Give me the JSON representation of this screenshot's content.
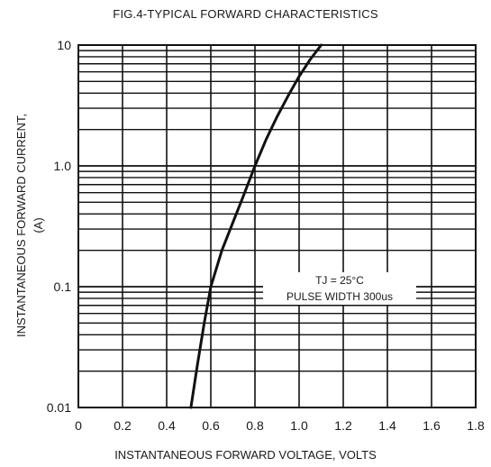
{
  "chart_data": {
    "type": "line",
    "title": "FIG.4-TYPICAL FORWARD CHARACTERISTICS",
    "xlabel": "INSTANTANEOUS FORWARD VOLTAGE, VOLTS",
    "ylabel_line1": "INSTANTANEOUS FORWARD CURRENT,",
    "ylabel_line2": "(A)",
    "xlim": [
      0,
      1.8
    ],
    "ylim": [
      0.01,
      10
    ],
    "yscale": "log",
    "grid": true,
    "x_ticks": [
      "0",
      "0.2",
      "0.4",
      "0.6",
      "0.8",
      "1.0",
      "1.2",
      "1.4",
      "1.6",
      "1.8"
    ],
    "y_ticks": [
      "0.01",
      "0.1",
      "1.0",
      "10"
    ],
    "annotations": [
      "TJ = 25°C",
      "PULSE WIDTH 300us"
    ],
    "series": [
      {
        "x": [
          0.51,
          0.54,
          0.57,
          0.6,
          0.65,
          0.7,
          0.75,
          0.8,
          0.85,
          0.9,
          0.95,
          1.0,
          1.05,
          1.1
        ],
        "y": [
          0.01,
          0.023,
          0.05,
          0.1,
          0.2,
          0.34,
          0.58,
          1.0,
          1.65,
          2.55,
          3.8,
          5.5,
          7.6,
          10.0
        ]
      }
    ]
  }
}
